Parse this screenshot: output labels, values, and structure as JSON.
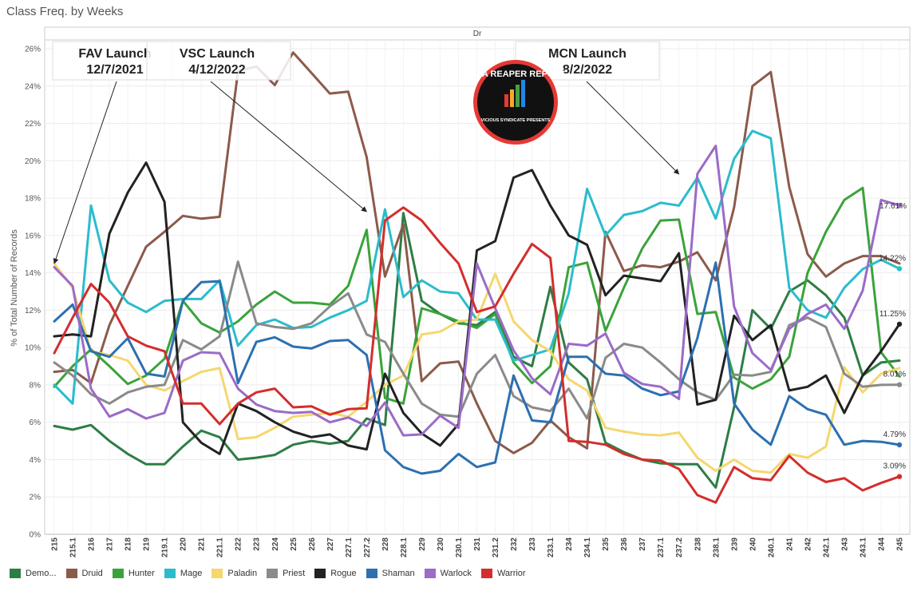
{
  "title": "Class Freq. by Weeks",
  "column_header": "Dr",
  "logo_text": "DATA REAPER REPORT",
  "logo_subtext": "VICIOUS SYNDICATE PRESENTS",
  "annotations": [
    {
      "name": "FAV Launch",
      "date": "12/7/2021",
      "target_x": "215"
    },
    {
      "name": "VSC Launch",
      "date": "4/12/2022",
      "target_x": "227.2"
    },
    {
      "name": "MCN Launch",
      "date": "8/2/2022",
      "target_x": "237.2"
    }
  ],
  "chart_data": {
    "type": "line",
    "ylabel": "% of Total Number of Records",
    "ylim": [
      0,
      26
    ],
    "yticks": [
      0,
      2,
      4,
      6,
      8,
      10,
      12,
      14,
      16,
      18,
      20,
      22,
      24,
      26
    ],
    "ytick_labels": [
      "0%",
      "2%",
      "4%",
      "6%",
      "8%",
      "10%",
      "12%",
      "14%",
      "16%",
      "18%",
      "20%",
      "22%",
      "24%",
      "26%"
    ],
    "grid": true,
    "categories": [
      "215",
      "215.1",
      "216",
      "217",
      "218",
      "219",
      "219.1",
      "220",
      "221",
      "221.1",
      "222",
      "223",
      "224",
      "225",
      "226",
      "227",
      "227.1",
      "227.2",
      "228",
      "228.1",
      "229",
      "230",
      "230.1",
      "231",
      "231.2",
      "232",
      "233",
      "233.1",
      "234",
      "234.1",
      "235",
      "236",
      "237",
      "237.1",
      "237.2",
      "238",
      "238.1",
      "239",
      "240",
      "240.1",
      "241",
      "242",
      "242.1",
      "243",
      "243.1",
      "244",
      "245"
    ],
    "series": [
      {
        "name": "Demo...",
        "color": "#2e7d45",
        "values": [
          5.8,
          5.6,
          5.85,
          5.0,
          4.3,
          3.75,
          3.75,
          4.7,
          5.55,
          5.2,
          4.0,
          4.1,
          4.25,
          4.8,
          5.0,
          4.85,
          5.0,
          6.2,
          5.85,
          17.2,
          12.5,
          11.8,
          11.3,
          11.2,
          11.9,
          9.5,
          9.0,
          13.25,
          9.2,
          8.3,
          4.9,
          4.4,
          4.0,
          3.8,
          3.75,
          3.75,
          2.5,
          6.8,
          12.0,
          11.0,
          13.0,
          13.6,
          12.8,
          11.6,
          8.5,
          9.2,
          9.3
        ]
      },
      {
        "name": "Druid",
        "color": "#8c5a4a",
        "values": [
          8.7,
          8.8,
          8.1,
          11.2,
          13.3,
          15.4,
          16.2,
          17.05,
          16.9,
          17.0,
          24.8,
          25.05,
          24.05,
          25.8,
          24.7,
          23.6,
          23.7,
          20.2,
          13.8,
          16.6,
          8.2,
          9.15,
          9.25,
          7.0,
          5.0,
          4.35,
          4.9,
          6.1,
          5.2,
          4.6,
          16.2,
          14.1,
          14.4,
          14.3,
          14.6,
          15.1,
          13.6,
          17.5,
          24.0,
          24.75,
          18.6,
          15.0,
          13.8,
          14.5,
          14.9,
          14.9,
          14.5
        ]
      },
      {
        "name": "Hunter",
        "color": "#3aa33a",
        "values": [
          7.9,
          9.0,
          9.9,
          9.0,
          8.05,
          8.5,
          9.4,
          12.5,
          11.3,
          10.8,
          11.4,
          12.3,
          13.0,
          12.4,
          12.4,
          12.3,
          13.3,
          16.3,
          7.3,
          7.0,
          12.1,
          11.8,
          11.4,
          11.05,
          11.8,
          9.2,
          8.1,
          9.0,
          14.3,
          14.55,
          10.9,
          13.2,
          15.3,
          16.8,
          16.85,
          11.8,
          11.9,
          8.4,
          7.8,
          8.3,
          9.5,
          14.0,
          16.2,
          17.9,
          18.55,
          9.75,
          8.45
        ]
      },
      {
        "name": "Mage",
        "color": "#2bbccc",
        "values": [
          8.0,
          7.0,
          17.6,
          13.6,
          12.4,
          11.9,
          12.5,
          12.6,
          12.6,
          13.6,
          10.1,
          11.2,
          11.5,
          11.05,
          11.1,
          11.6,
          12.0,
          12.5,
          17.4,
          12.7,
          13.6,
          13.0,
          12.9,
          11.5,
          11.5,
          9.3,
          9.6,
          9.9,
          12.9,
          18.5,
          16.0,
          17.1,
          17.3,
          17.75,
          17.6,
          19.1,
          16.9,
          20.1,
          21.6,
          21.2,
          13.2,
          12.0,
          11.6,
          13.2,
          14.2,
          14.7,
          14.22
        ]
      },
      {
        "name": "Paladin",
        "color": "#f5d76e",
        "values": [
          14.5,
          13.2,
          9.8,
          9.6,
          9.3,
          8.0,
          7.7,
          8.2,
          8.7,
          8.9,
          5.1,
          5.2,
          5.7,
          6.3,
          6.4,
          6.5,
          6.3,
          7.1,
          8.0,
          8.5,
          10.7,
          10.85,
          11.4,
          11.5,
          13.95,
          11.4,
          10.4,
          9.8,
          8.3,
          7.7,
          5.7,
          5.5,
          5.35,
          5.3,
          5.45,
          4.1,
          3.4,
          4.0,
          3.4,
          3.3,
          4.3,
          4.1,
          4.7,
          8.95,
          7.6,
          8.6,
          8.9
        ]
      },
      {
        "name": "Priest",
        "color": "#8a8a8a",
        "values": [
          9.2,
          8.5,
          7.5,
          7.0,
          7.6,
          7.9,
          8.0,
          10.4,
          9.9,
          10.6,
          14.6,
          11.3,
          11.1,
          11.0,
          11.3,
          12.2,
          12.9,
          10.7,
          10.3,
          8.6,
          7.0,
          6.4,
          6.3,
          8.6,
          9.6,
          7.4,
          6.8,
          6.6,
          7.8,
          6.2,
          9.45,
          10.2,
          10.0,
          9.2,
          8.3,
          7.6,
          7.2,
          8.55,
          8.5,
          8.7,
          11.2,
          11.6,
          11.1,
          8.6,
          7.9,
          8.0,
          8.01
        ]
      },
      {
        "name": "Rogue",
        "color": "#222222",
        "values": [
          10.6,
          10.7,
          10.6,
          16.1,
          18.3,
          19.9,
          17.8,
          6.0,
          4.9,
          4.3,
          7.0,
          6.6,
          6.0,
          5.5,
          5.2,
          5.35,
          4.75,
          4.55,
          8.6,
          6.5,
          5.4,
          4.75,
          5.9,
          15.2,
          15.7,
          19.1,
          19.5,
          17.6,
          16.0,
          15.5,
          12.8,
          13.85,
          13.7,
          13.55,
          15.05,
          6.95,
          7.2,
          11.7,
          10.4,
          11.2,
          7.7,
          7.9,
          8.5,
          6.5,
          8.5,
          9.8,
          11.25
        ]
      },
      {
        "name": "Shaman",
        "color": "#2c70b0",
        "values": [
          11.4,
          12.3,
          9.8,
          9.5,
          10.5,
          8.6,
          8.45,
          12.5,
          13.5,
          13.55,
          8.1,
          10.3,
          10.55,
          10.05,
          9.95,
          10.35,
          10.4,
          9.6,
          4.5,
          3.6,
          3.25,
          3.4,
          4.3,
          3.6,
          3.85,
          8.5,
          6.1,
          6.0,
          9.5,
          9.5,
          8.6,
          8.5,
          7.8,
          7.45,
          7.65,
          10.5,
          14.55,
          7.0,
          5.6,
          4.8,
          7.4,
          6.7,
          6.4,
          4.8,
          5.0,
          4.95,
          4.79
        ]
      },
      {
        "name": "Warlock",
        "color": "#9b6bc7",
        "values": [
          14.3,
          13.3,
          7.8,
          6.3,
          6.7,
          6.2,
          6.5,
          9.3,
          9.75,
          9.7,
          7.8,
          6.95,
          6.6,
          6.5,
          6.55,
          6.0,
          6.25,
          5.8,
          7.05,
          5.3,
          5.35,
          6.35,
          5.7,
          14.5,
          12.1,
          9.85,
          8.35,
          7.5,
          10.2,
          10.1,
          10.75,
          8.65,
          8.05,
          7.9,
          7.25,
          19.3,
          20.8,
          12.2,
          9.7,
          8.8,
          11.0,
          11.8,
          12.3,
          11.0,
          13.05,
          17.9,
          17.61
        ]
      },
      {
        "name": "Warrior",
        "color": "#d42d2d",
        "values": [
          9.7,
          11.6,
          13.4,
          12.4,
          10.6,
          10.1,
          9.8,
          7.0,
          7.0,
          5.9,
          7.0,
          7.6,
          7.8,
          6.8,
          6.85,
          6.4,
          6.7,
          6.75,
          16.8,
          17.5,
          16.8,
          15.6,
          14.5,
          11.9,
          12.2,
          13.95,
          15.55,
          14.8,
          5.0,
          4.95,
          4.8,
          4.3,
          4.0,
          3.95,
          3.5,
          2.1,
          1.7,
          3.6,
          3.0,
          2.9,
          4.2,
          3.3,
          2.8,
          3.0,
          2.35,
          2.75,
          3.09
        ]
      }
    ],
    "end_labels": [
      {
        "series": "Warlock",
        "text": "17.61%"
      },
      {
        "series": "Mage",
        "text": "14.22%"
      },
      {
        "series": "Rogue",
        "text": "11.25%"
      },
      {
        "series": "Priest",
        "text": "8.01%"
      },
      {
        "series": "Shaman",
        "text": "4.79%"
      },
      {
        "series": "Warrior",
        "text": "3.09%"
      }
    ],
    "legend_position": "bottom"
  }
}
